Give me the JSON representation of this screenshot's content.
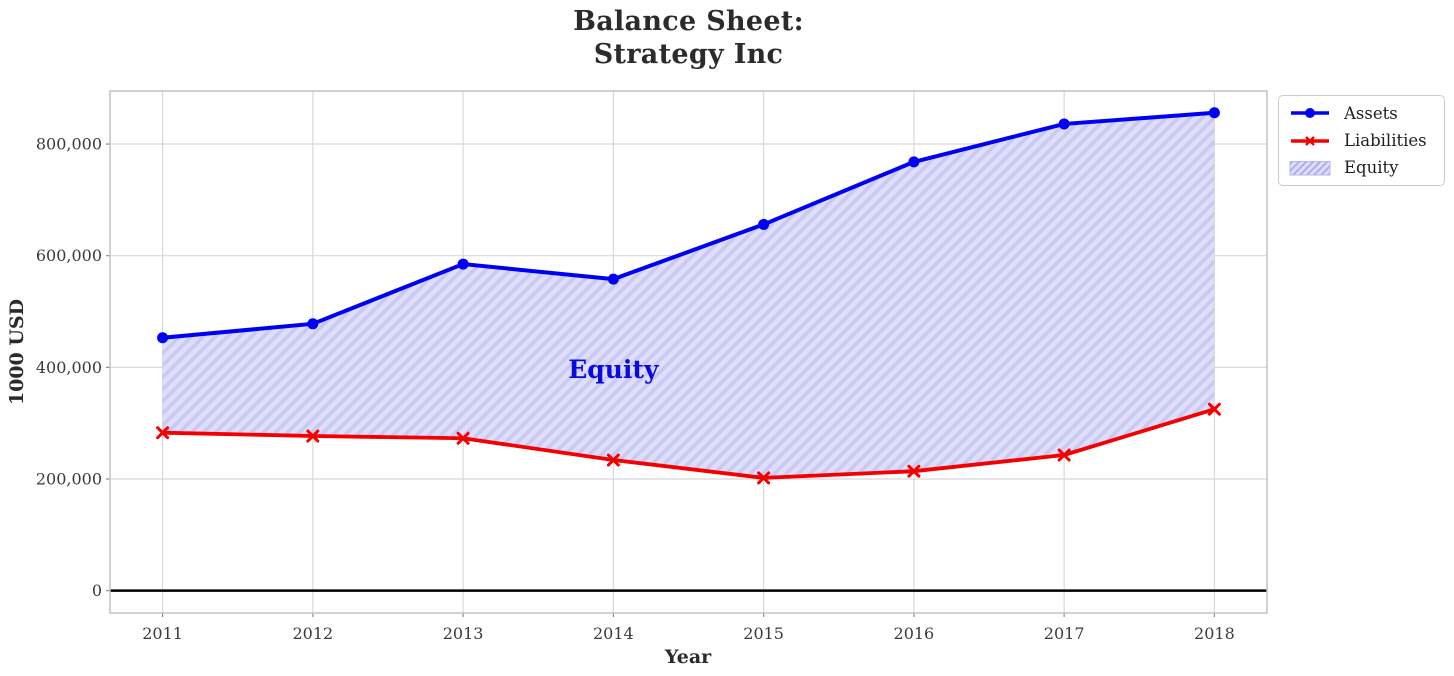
{
  "chart_data": {
    "type": "line",
    "title": "Balance Sheet:\nStrategy Inc",
    "title_lines": [
      "Balance Sheet:",
      "Strategy Inc"
    ],
    "xlabel": "Year",
    "ylabel": "1000 USD",
    "x": [
      2011,
      2012,
      2013,
      2014,
      2015,
      2016,
      2017,
      2018
    ],
    "series": [
      {
        "name": "Assets",
        "color": "#0000f5",
        "marker": "circle",
        "values": [
          453000,
          478000,
          585000,
          558000,
          656000,
          768000,
          836000,
          856000
        ]
      },
      {
        "name": "Liabilities",
        "color": "#f50000",
        "marker": "x",
        "values": [
          283000,
          277000,
          273000,
          234000,
          202000,
          214000,
          243000,
          325000
        ]
      }
    ],
    "fill_between": {
      "name": "Equity",
      "upper": "Assets",
      "lower": "Liabilities",
      "fill_color": "#dedefa",
      "hatch_color": "#c9c8f2",
      "hatch_style": "//"
    },
    "annotation": {
      "text": "Equity",
      "x": 2014,
      "y": 397000,
      "color": "#0a0ae0"
    },
    "xlim": [
      2010.65,
      2018.35
    ],
    "ylim": [
      -40000,
      895000
    ],
    "xticks": [
      2011,
      2012,
      2013,
      2014,
      2015,
      2016,
      2017,
      2018
    ],
    "xtick_labels": [
      "2011",
      "2012",
      "2013",
      "2014",
      "2015",
      "2016",
      "2017",
      "2018"
    ],
    "yticks": [
      0,
      200000,
      400000,
      600000,
      800000
    ],
    "ytick_labels": [
      "0",
      "200,000",
      "400,000",
      "600,000",
      "800,000"
    ],
    "grid": true,
    "zero_line": true,
    "legend": {
      "position": "outside upper right"
    },
    "colors": {
      "grid": "#d8d8d8",
      "spine": "#c2c2c2",
      "zero_line": "#000000",
      "tick_label": "#3a3a3a",
      "tick_mark": "#8a8a8a",
      "legend_border": "#cccccc",
      "legend_patch_border": "#b7b6ee"
    }
  }
}
